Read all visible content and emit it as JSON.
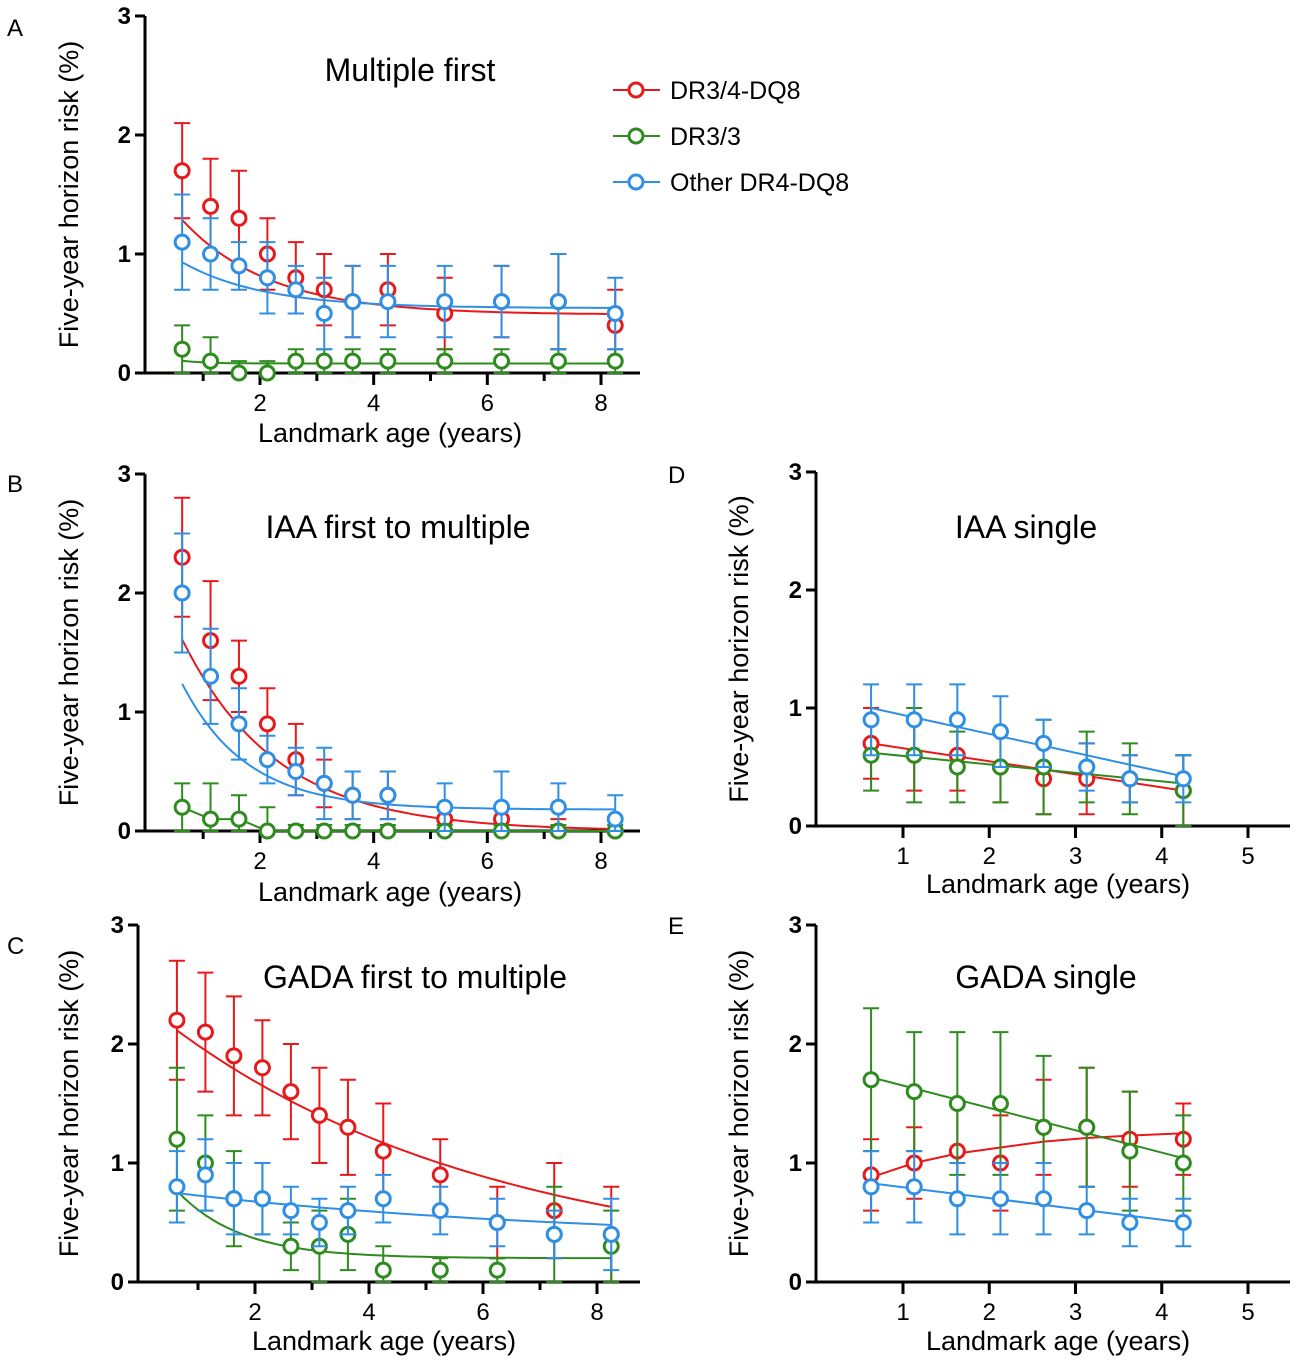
{
  "legend": [
    {
      "name": "DR3/4-DQ8",
      "color": "#e8191b"
    },
    {
      "name": "DR3/3",
      "color": "#2e8b1e"
    },
    {
      "name": "Other DR4-DQ8",
      "color": "#2f8fe4"
    }
  ],
  "chart_data": [
    {
      "letter": "A",
      "type": "scatter",
      "title": "Multiple first",
      "xlabel": "Landmark age (years)",
      "ylabel": "Five-year horizon risk (%)",
      "xlim": [
        0,
        8.5
      ],
      "ylim": [
        0,
        3
      ],
      "xticks": [
        2,
        4,
        6,
        8
      ],
      "yticks": [
        0,
        1,
        2,
        3
      ],
      "legend_position": "top-right",
      "series": [
        {
          "name": "DR3/4-DQ8",
          "color": "#e8191b",
          "x": [
            0.63,
            1.13,
            1.63,
            2.13,
            2.63,
            3.13,
            3.63,
            4.25,
            5.25,
            6.25,
            7.25,
            8.25
          ],
          "y": [
            1.7,
            1.4,
            1.3,
            1.0,
            0.8,
            0.7,
            0.6,
            0.7,
            0.5,
            0.6,
            0.6,
            0.4
          ],
          "err": [
            0.4,
            0.4,
            0.4,
            0.3,
            0.3,
            0.3,
            0.3,
            0.3,
            0.3,
            0.3,
            0.4,
            0.3
          ],
          "fit": [
            1.2,
            0.49,
            0.65
          ]
        },
        {
          "name": "DR3/3",
          "color": "#2e8b1e",
          "x": [
            0.63,
            1.13,
            1.63,
            2.13,
            2.63,
            3.13,
            3.63,
            4.25,
            5.25,
            6.25,
            7.25,
            8.25
          ],
          "y": [
            0.2,
            0.1,
            0.0,
            0.0,
            0.1,
            0.1,
            0.1,
            0.1,
            0.1,
            0.1,
            0.1,
            0.1
          ],
          "err": [
            0.2,
            0.2,
            0.1,
            0.1,
            0.1,
            0.1,
            0.1,
            0.1,
            0.1,
            0.1,
            0.1,
            0.1
          ],
          "fit": [
            0.11,
            0.08,
            2.5
          ]
        },
        {
          "name": "Other DR4-DQ8",
          "color": "#2f8fe4",
          "x": [
            0.63,
            1.13,
            1.63,
            2.13,
            2.63,
            3.13,
            3.63,
            4.25,
            5.25,
            6.25,
            7.25,
            8.25
          ],
          "y": [
            1.1,
            1.0,
            0.9,
            0.8,
            0.7,
            0.5,
            0.6,
            0.6,
            0.6,
            0.6,
            0.6,
            0.5
          ],
          "err": [
            0.4,
            0.3,
            0.2,
            0.3,
            0.2,
            0.3,
            0.3,
            0.3,
            0.3,
            0.3,
            0.4,
            0.3
          ],
          "fit": [
            0.6,
            0.545,
            0.7
          ]
        }
      ]
    },
    {
      "letter": "B",
      "type": "scatter",
      "title": "IAA first to multiple",
      "xlabel": "Landmark age (years)",
      "ylabel": "Five-year horizon risk (%)",
      "xlim": [
        0,
        8.5
      ],
      "ylim": [
        0,
        3
      ],
      "xticks": [
        2,
        4,
        6,
        8
      ],
      "yticks": [
        0,
        1,
        2,
        3
      ],
      "series": [
        {
          "name": "DR3/4-DQ8",
          "color": "#e8191b",
          "x": [
            0.63,
            1.13,
            1.63,
            2.13,
            2.63,
            3.13,
            3.63,
            4.25,
            5.25,
            6.25,
            7.25,
            8.25
          ],
          "y": [
            2.3,
            1.6,
            1.3,
            0.9,
            0.6,
            0.4,
            0.3,
            0.3,
            0.1,
            0.1,
            0.0,
            0.0
          ],
          "err": [
            0.5,
            0.5,
            0.3,
            0.3,
            0.3,
            0.2,
            0.2,
            0.2,
            0.1,
            0.1,
            0.1,
            0.1
          ],
          "fit": [
            2.35,
            0.0,
            0.6
          ]
        },
        {
          "name": "DR3/3",
          "color": "#2e8b1e",
          "x": [
            0.63,
            1.13,
            1.63,
            2.13,
            2.63,
            3.13,
            3.63,
            4.25,
            5.25,
            6.25,
            7.25,
            8.25
          ],
          "y": [
            0.2,
            0.1,
            0.1,
            0.0,
            0.0,
            0.0,
            0.0,
            0.0,
            0.0,
            0.0,
            0.0,
            0.0
          ],
          "err": [
            0.2,
            0.3,
            0.2,
            0.2,
            0.05,
            0.05,
            0.05,
            0.05,
            0.05,
            0.05,
            0.05,
            0.05
          ],
          "fit": null
        },
        {
          "name": "Other DR4-DQ8",
          "color": "#2f8fe4",
          "x": [
            0.63,
            1.13,
            1.63,
            2.13,
            2.63,
            3.13,
            3.63,
            4.25,
            5.25,
            6.25,
            7.25,
            8.25
          ],
          "y": [
            2.0,
            1.3,
            0.9,
            0.6,
            0.5,
            0.4,
            0.3,
            0.3,
            0.2,
            0.2,
            0.2,
            0.1
          ],
          "err": [
            0.5,
            0.4,
            0.3,
            0.2,
            0.2,
            0.3,
            0.2,
            0.2,
            0.2,
            0.3,
            0.2,
            0.2
          ],
          "fit": [
            1.84,
            0.18,
            0.88
          ]
        }
      ]
    },
    {
      "letter": "C",
      "type": "scatter",
      "title": "GADA first to multiple",
      "xlabel": "Landmark age (years)",
      "ylabel": "Five-year horizon risk (%)",
      "xlim": [
        0,
        8.5
      ],
      "ylim": [
        0,
        3
      ],
      "xticks": [
        2,
        4,
        6,
        8
      ],
      "yticks": [
        0,
        1,
        2,
        3
      ],
      "series": [
        {
          "name": "DR3/4-DQ8",
          "color": "#e8191b",
          "x": [
            0.63,
            1.13,
            1.63,
            2.13,
            2.63,
            3.13,
            3.63,
            4.25,
            5.25,
            6.25,
            7.25,
            8.25
          ],
          "y": [
            2.2,
            2.1,
            1.9,
            1.8,
            1.6,
            1.4,
            1.3,
            1.1,
            0.9,
            0.5,
            0.6,
            0.4
          ],
          "err": [
            0.5,
            0.5,
            0.5,
            0.4,
            0.4,
            0.4,
            0.4,
            0.4,
            0.3,
            0.3,
            0.4,
            0.4
          ],
          "fit": [
            2.25,
            0.1,
            0.175
          ]
        },
        {
          "name": "DR3/3",
          "color": "#2e8b1e",
          "x": [
            0.63,
            1.13,
            1.63,
            2.13,
            2.63,
            3.13,
            3.63,
            4.25,
            5.25,
            6.25,
            7.25,
            8.25
          ],
          "y": [
            1.2,
            1.0,
            0.7,
            0.7,
            0.3,
            0.3,
            0.4,
            0.1,
            0.1,
            0.1,
            0.4,
            0.3
          ],
          "err": [
            0.6,
            0.4,
            0.4,
            0.3,
            0.2,
            0.3,
            0.3,
            0.2,
            0.1,
            0.1,
            0.4,
            0.3
          ],
          "fit": [
            1.0,
            0.2,
            0.9
          ]
        },
        {
          "name": "Other DR4-DQ8",
          "color": "#2f8fe4",
          "x": [
            0.63,
            1.13,
            1.63,
            2.13,
            2.63,
            3.13,
            3.63,
            4.25,
            5.25,
            6.25,
            7.25,
            8.25
          ],
          "y": [
            0.8,
            0.9,
            0.7,
            0.7,
            0.6,
            0.5,
            0.6,
            0.7,
            0.6,
            0.5,
            0.4,
            0.4
          ],
          "err": [
            0.3,
            0.3,
            0.3,
            0.3,
            0.2,
            0.2,
            0.2,
            0.2,
            0.2,
            0.2,
            0.2,
            0.3
          ],
          "fit": [
            0.445,
            0.34,
            0.14
          ]
        }
      ]
    },
    {
      "letter": "D",
      "type": "scatter",
      "title": "IAA single",
      "xlabel": "Landmark age (years)",
      "ylabel": "Five-year horizon risk (%)",
      "xlim": [
        0,
        6
      ],
      "ylim": [
        0,
        3
      ],
      "xticks": [
        1,
        2,
        3,
        4,
        5
      ],
      "yticks": [
        0,
        1,
        2,
        3
      ],
      "series": [
        {
          "name": "DR3/4-DQ8",
          "color": "#e8191b",
          "x": [
            0.63,
            1.13,
            1.63,
            2.13,
            2.63,
            3.13,
            3.63,
            4.25
          ],
          "y": [
            0.7,
            0.6,
            0.6,
            0.5,
            0.4,
            0.4,
            0.4,
            0.3
          ],
          "err": [
            0.3,
            0.3,
            0.3,
            0.3,
            0.3,
            0.3,
            0.2,
            0.3
          ],
          "line": [
            [
              0.63,
              0.7
            ],
            [
              4.25,
              0.3
            ]
          ]
        },
        {
          "name": "DR3/3",
          "color": "#2e8b1e",
          "x": [
            0.63,
            1.13,
            1.63,
            2.13,
            2.63,
            3.13,
            3.63,
            4.25
          ],
          "y": [
            0.6,
            0.6,
            0.5,
            0.5,
            0.5,
            0.5,
            0.4,
            0.3
          ],
          "err": [
            0.3,
            0.4,
            0.3,
            0.3,
            0.4,
            0.3,
            0.3,
            0.3
          ],
          "line": [
            [
              0.63,
              0.62
            ],
            [
              4.25,
              0.36
            ]
          ]
        },
        {
          "name": "Other DR4-DQ8",
          "color": "#2f8fe4",
          "x": [
            0.63,
            1.13,
            1.63,
            2.13,
            2.63,
            3.13,
            3.63,
            4.25
          ],
          "y": [
            0.9,
            0.9,
            0.9,
            0.8,
            0.7,
            0.5,
            0.4,
            0.4
          ],
          "err": [
            0.3,
            0.3,
            0.3,
            0.3,
            0.2,
            0.2,
            0.2,
            0.2
          ],
          "line": [
            [
              0.63,
              1.0
            ],
            [
              4.25,
              0.42
            ]
          ]
        }
      ]
    },
    {
      "letter": "E",
      "type": "scatter",
      "title": "GADA single",
      "xlabel": "Landmark age (years)",
      "ylabel": "Five-year horizon risk (%)",
      "xlim": [
        0,
        6
      ],
      "ylim": [
        0,
        3
      ],
      "xticks": [
        1,
        2,
        3,
        4,
        5
      ],
      "yticks": [
        0,
        1,
        2,
        3
      ],
      "series": [
        {
          "name": "DR3/4-DQ8",
          "color": "#e8191b",
          "x": [
            0.63,
            1.13,
            1.63,
            2.13,
            2.63,
            3.13,
            3.63,
            4.25
          ],
          "y": [
            0.9,
            1.0,
            1.1,
            1.0,
            1.3,
            1.3,
            1.2,
            1.2
          ],
          "err": [
            0.3,
            0.3,
            0.4,
            0.4,
            0.4,
            0.5,
            0.4,
            0.3
          ],
          "curve": [
            [
              0.63,
              0.88
            ],
            [
              1.13,
              1.0
            ],
            [
              1.63,
              1.08
            ],
            [
              2.13,
              1.13
            ],
            [
              2.63,
              1.18
            ],
            [
              3.13,
              1.21
            ],
            [
              3.63,
              1.23
            ],
            [
              4.25,
              1.25
            ]
          ]
        },
        {
          "name": "DR3/3",
          "color": "#2e8b1e",
          "x": [
            0.63,
            1.13,
            1.63,
            2.13,
            2.63,
            3.13,
            3.63,
            4.25
          ],
          "y": [
            1.7,
            1.6,
            1.5,
            1.5,
            1.3,
            1.3,
            1.1,
            1.0
          ],
          "err": [
            0.6,
            0.5,
            0.6,
            0.6,
            0.6,
            0.5,
            0.5,
            0.4
          ],
          "line": [
            [
              0.63,
              1.72
            ],
            [
              4.25,
              1.04
            ]
          ]
        },
        {
          "name": "Other DR4-DQ8",
          "color": "#2f8fe4",
          "x": [
            0.63,
            1.13,
            1.63,
            2.13,
            2.63,
            3.13,
            3.63,
            4.25
          ],
          "y": [
            0.8,
            0.8,
            0.7,
            0.7,
            0.7,
            0.6,
            0.5,
            0.5
          ],
          "err": [
            0.3,
            0.3,
            0.3,
            0.3,
            0.3,
            0.2,
            0.2,
            0.2
          ],
          "line": [
            [
              0.63,
              0.83
            ],
            [
              4.25,
              0.5
            ]
          ]
        }
      ]
    }
  ]
}
